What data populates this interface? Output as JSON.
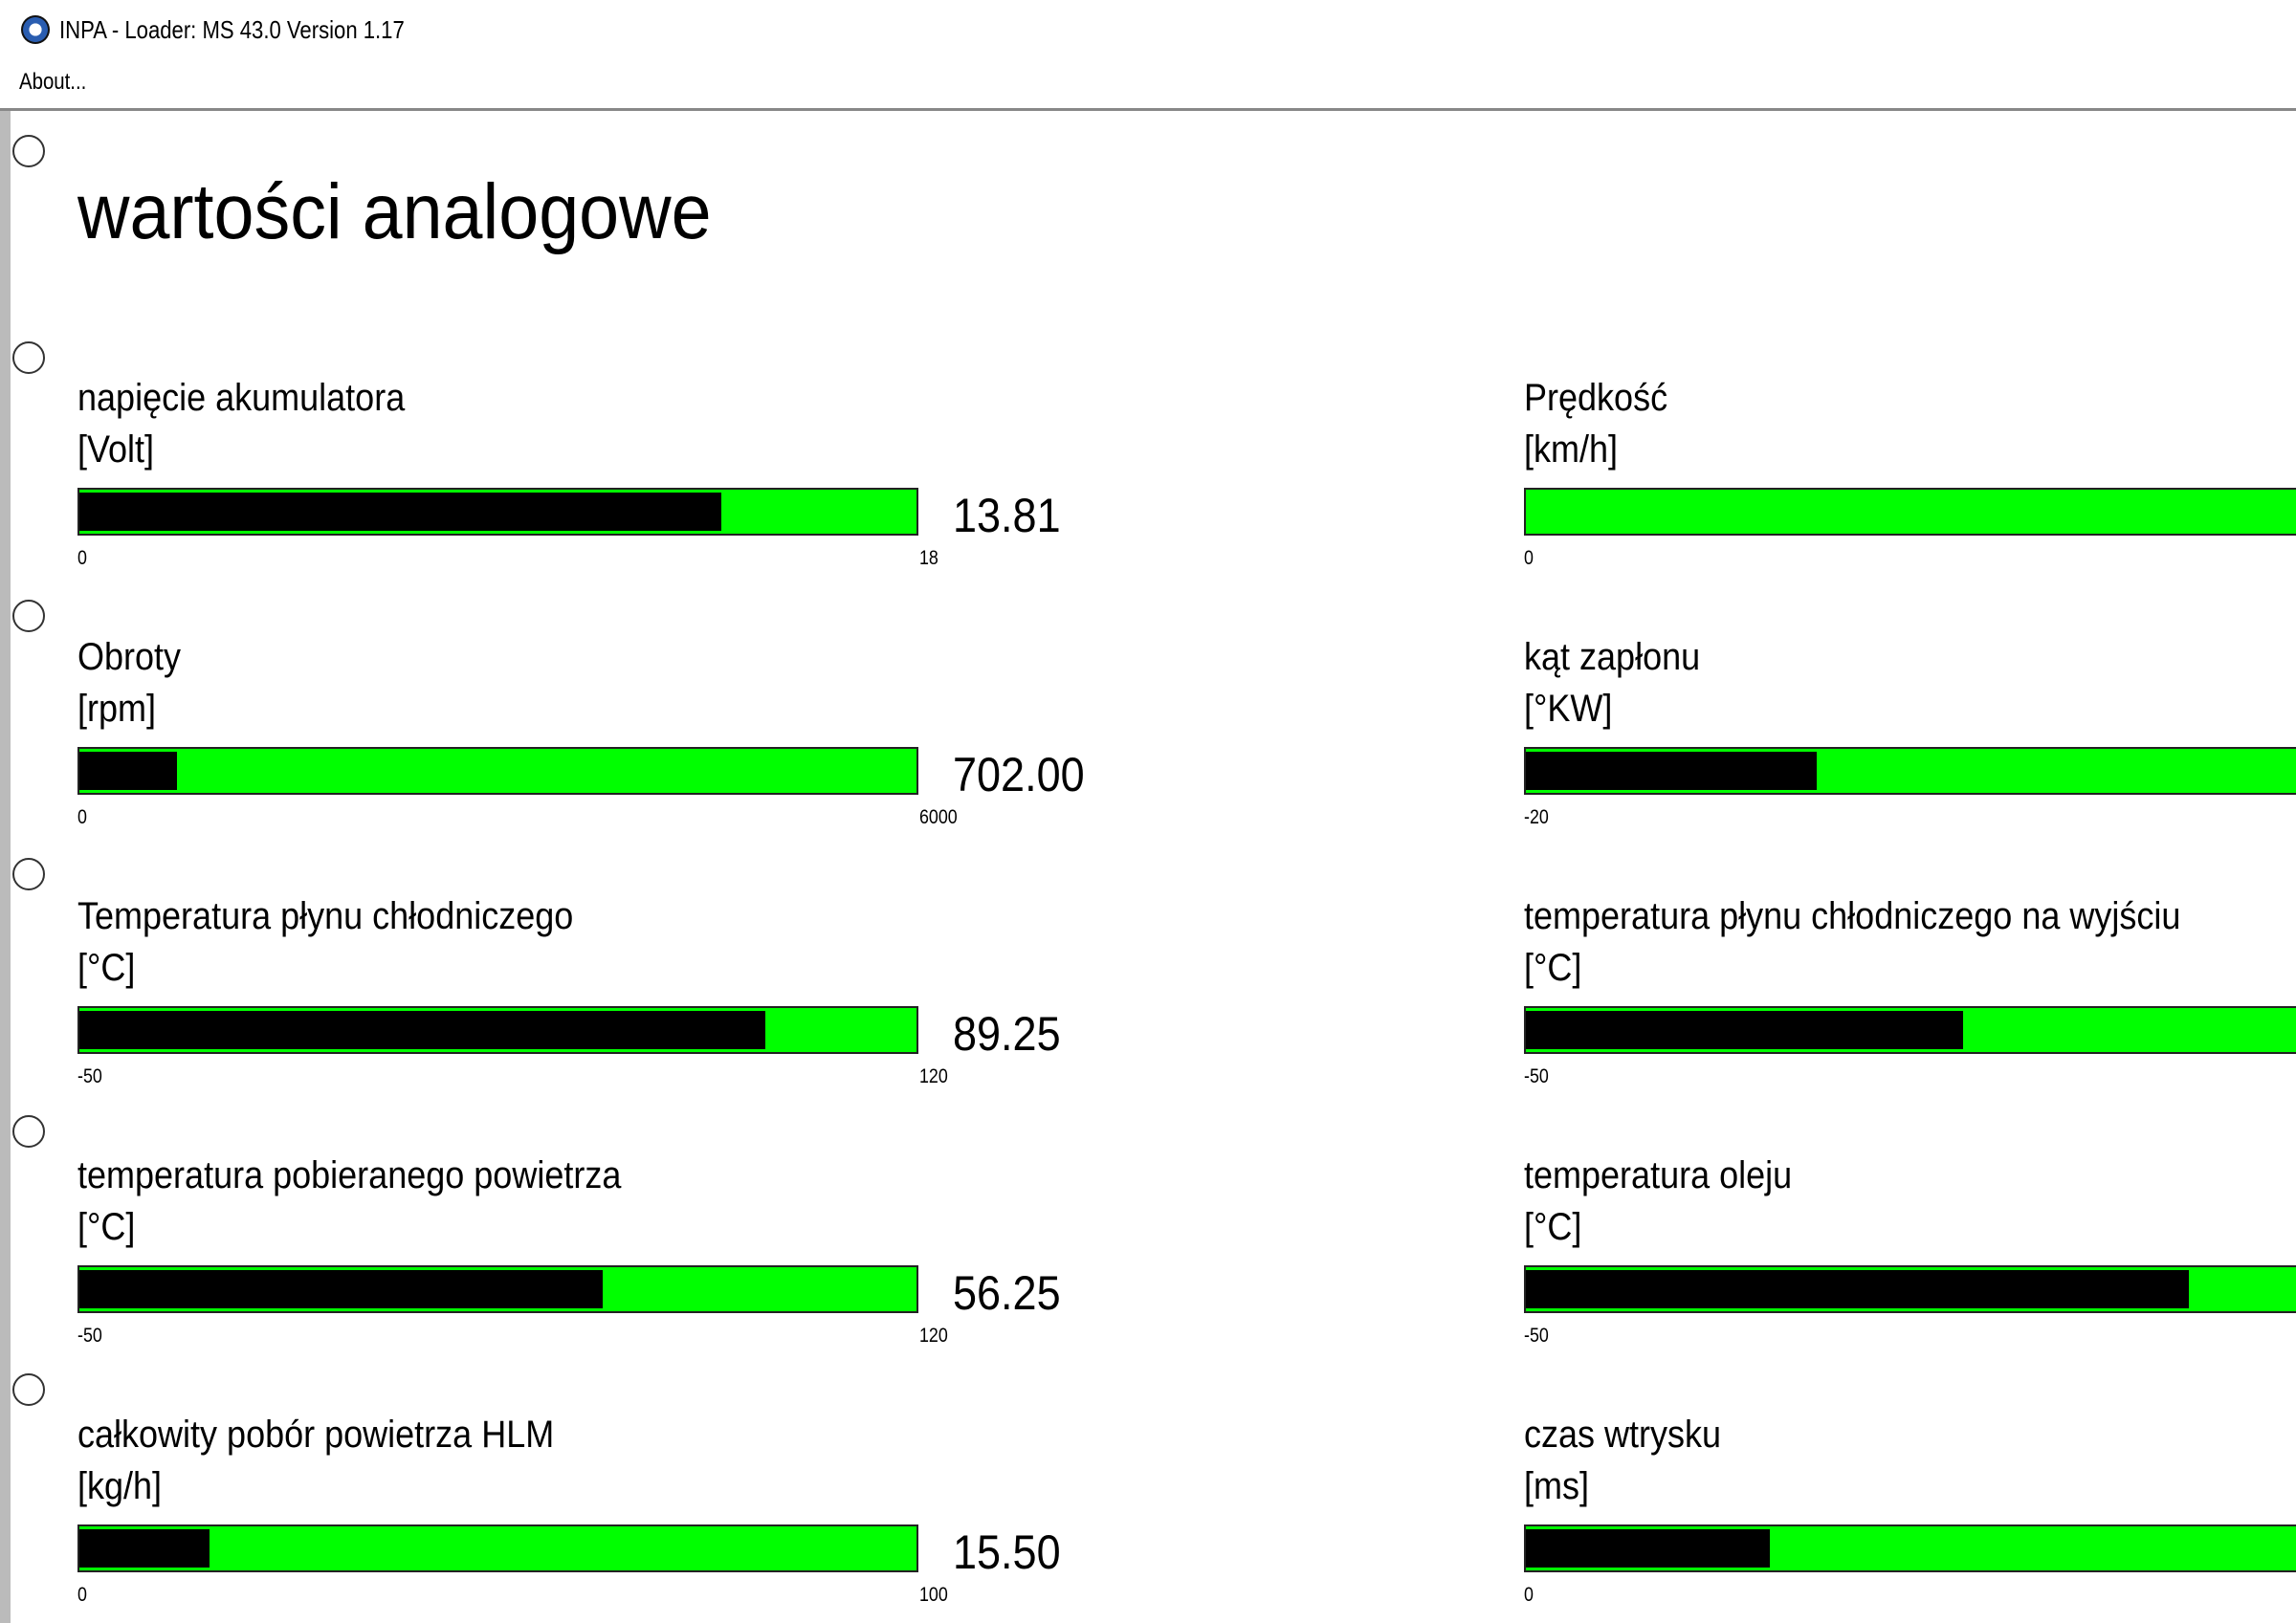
{
  "window": {
    "title": "INPA - Loader:  MS 43.0 Version 1.17"
  },
  "menu": {
    "items": [
      "About..."
    ]
  },
  "heading": "wartości analogowe",
  "gauges": [
    {
      "label": "napięcie akumulatora",
      "unit": "[Volt]",
      "value": 13.81,
      "min": 0,
      "max": 18
    },
    {
      "label": "Obroty",
      "unit": "[rpm]",
      "value": 702,
      "value_label": "702.00",
      "min": 0,
      "max": 6000
    },
    {
      "label": "Temperatura płynu chłodniczego",
      "unit": "[°C]",
      "value": 89.25,
      "min": -50,
      "max": 120
    },
    {
      "label": "temperatura pobieranego powietrza",
      "unit": "[°C]",
      "value": 56.25,
      "min": -50,
      "max": 120
    },
    {
      "label": "całkowity pobór powietrza HLM",
      "unit": "[kg/h]",
      "value": 15.5,
      "value_label": "15.50",
      "min": 0,
      "max": 100
    }
  ],
  "right_gauges": [
    {
      "label": "Prędkość",
      "unit": "[km/h]",
      "min": 0
    },
    {
      "label": "kąt zapłonu",
      "unit": "[°KW]",
      "min": -20
    },
    {
      "label": "temperatura płynu chłodniczego na wyjściu",
      "unit": "[°C]",
      "min": -50
    },
    {
      "label": "temperatura oleju",
      "unit": "[°C]",
      "min": -50
    },
    {
      "label": "czas wtrysku",
      "unit": "[ms]",
      "min": 0
    }
  ]
}
